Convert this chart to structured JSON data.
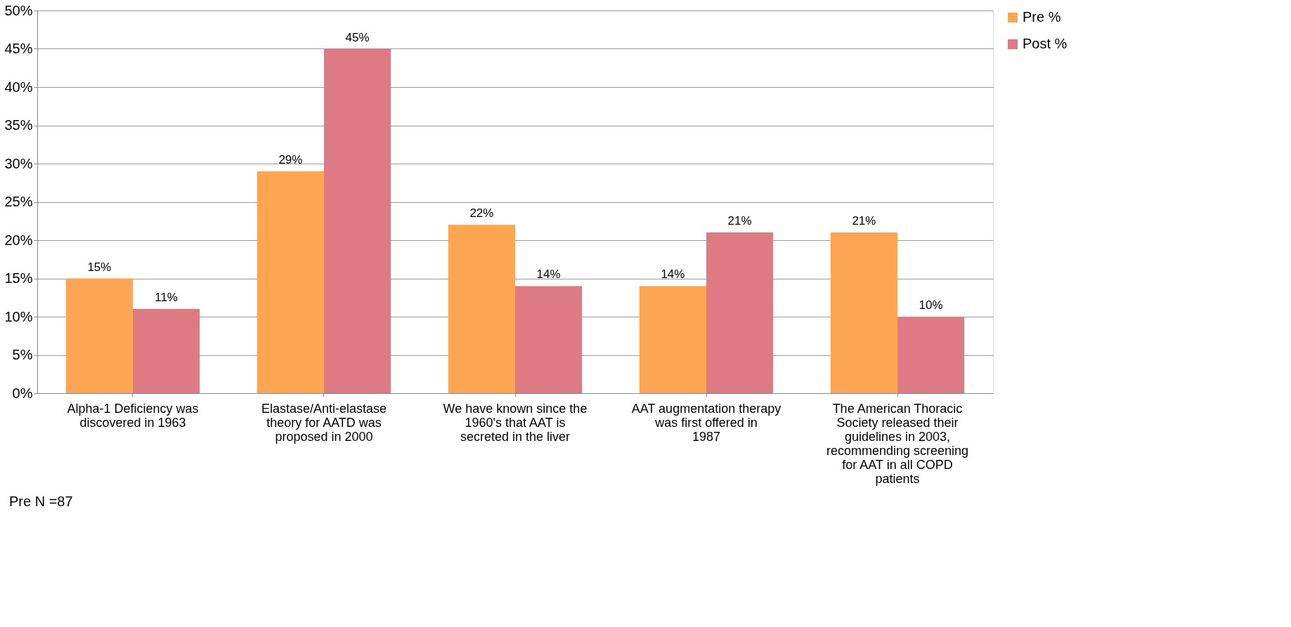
{
  "chart_data": {
    "type": "bar",
    "categories": [
      "Alpha-1 Deficiency was discovered in 1963",
      "Elastase/Anti-elastase theory for AATD was proposed in 2000",
      "We have known since the 1960's that AAT is secreted in the liver",
      "AAT augmentation therapy was first offered in 1987",
      "The American Thoracic Society released their guidelines in 2003, recommending screening for AAT in all COPD patients"
    ],
    "series": [
      {
        "name": "Pre %",
        "color": "#fca553",
        "values": [
          15,
          29,
          22,
          14,
          21
        ],
        "value_labels": [
          "15%",
          "29%",
          "22%",
          "14%",
          "21%"
        ]
      },
      {
        "name": "Post %",
        "color": "#de7a84",
        "values": [
          11,
          45,
          14,
          21,
          10
        ],
        "value_labels": [
          "11%",
          "45%",
          "14%",
          "21%",
          "10%"
        ]
      }
    ],
    "ylim": [
      0,
      50
    ],
    "yticks": [
      {
        "value": 0,
        "label": "0%"
      },
      {
        "value": 5,
        "label": "5%"
      },
      {
        "value": 10,
        "label": "10%"
      },
      {
        "value": 15,
        "label": "15%"
      },
      {
        "value": 20,
        "label": "20%"
      },
      {
        "value": 25,
        "label": "25%"
      },
      {
        "value": 30,
        "label": "30%"
      },
      {
        "value": 35,
        "label": "35%"
      },
      {
        "value": 40,
        "label": "40%"
      },
      {
        "value": 45,
        "label": "45%"
      },
      {
        "value": 50,
        "label": "50%"
      }
    ],
    "grid": "y",
    "legend": "right",
    "annotations": [
      "Pre N =87"
    ]
  }
}
